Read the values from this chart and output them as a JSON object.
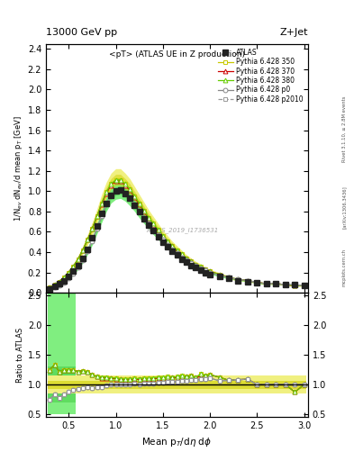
{
  "title_top": "13000 GeV pp",
  "title_right": "Z+Jet",
  "plot_title": "<pT> (ATLAS UE in Z production)",
  "xlabel": "Mean $p_T$/d$\\eta$ d$\\phi$",
  "ylabel_main": "1/N$_{ev}$ dN$_{ev}$/d mean p$_T$ [GeV]",
  "ylabel_ratio": "Ratio to ATLAS",
  "watermark": "ATLAS_2019_I1736531",
  "rivet_text": "Rivet 3.1.10, ≥ 2.8M events",
  "arxiv_text": "[arXiv:1306.3436]",
  "mcplots_text": "mcplots.cern.ch",
  "atlas_x": [
    0.3,
    0.35,
    0.4,
    0.45,
    0.5,
    0.55,
    0.6,
    0.65,
    0.7,
    0.75,
    0.8,
    0.85,
    0.9,
    0.95,
    1.0,
    1.05,
    1.1,
    1.15,
    1.2,
    1.25,
    1.3,
    1.35,
    1.4,
    1.45,
    1.5,
    1.55,
    1.6,
    1.65,
    1.7,
    1.75,
    1.8,
    1.85,
    1.9,
    1.95,
    2.0,
    2.1,
    2.2,
    2.3,
    2.4,
    2.5,
    2.6,
    2.7,
    2.8,
    2.9,
    3.0
  ],
  "atlas_y": [
    0.04,
    0.06,
    0.09,
    0.12,
    0.16,
    0.21,
    0.27,
    0.34,
    0.43,
    0.54,
    0.66,
    0.78,
    0.88,
    0.96,
    1.0,
    1.01,
    0.98,
    0.93,
    0.86,
    0.8,
    0.73,
    0.67,
    0.61,
    0.55,
    0.5,
    0.45,
    0.41,
    0.37,
    0.33,
    0.3,
    0.27,
    0.25,
    0.22,
    0.2,
    0.18,
    0.16,
    0.14,
    0.12,
    0.11,
    0.1,
    0.09,
    0.09,
    0.08,
    0.08,
    0.07
  ],
  "py350_x": [
    0.3,
    0.35,
    0.4,
    0.45,
    0.5,
    0.55,
    0.6,
    0.65,
    0.7,
    0.75,
    0.8,
    0.85,
    0.9,
    0.95,
    1.0,
    1.05,
    1.1,
    1.15,
    1.2,
    1.25,
    1.3,
    1.35,
    1.4,
    1.45,
    1.5,
    1.55,
    1.6,
    1.65,
    1.7,
    1.75,
    1.8,
    1.85,
    1.9,
    1.95,
    2.0,
    2.1,
    2.2,
    2.3,
    2.4,
    2.5,
    2.6,
    2.7,
    2.8,
    2.9,
    3.0
  ],
  "py350_y": [
    0.05,
    0.08,
    0.11,
    0.15,
    0.2,
    0.26,
    0.33,
    0.42,
    0.52,
    0.63,
    0.75,
    0.88,
    0.99,
    1.07,
    1.11,
    1.11,
    1.07,
    1.02,
    0.95,
    0.88,
    0.81,
    0.74,
    0.68,
    0.62,
    0.56,
    0.51,
    0.46,
    0.42,
    0.38,
    0.34,
    0.31,
    0.28,
    0.26,
    0.23,
    0.21,
    0.18,
    0.15,
    0.13,
    0.12,
    0.1,
    0.09,
    0.09,
    0.08,
    0.07,
    0.07
  ],
  "py350_color": "#c8c800",
  "py370_x": [
    0.3,
    0.35,
    0.4,
    0.45,
    0.5,
    0.55,
    0.6,
    0.65,
    0.7,
    0.75,
    0.8,
    0.85,
    0.9,
    0.95,
    1.0,
    1.05,
    1.1,
    1.15,
    1.2,
    1.25,
    1.3,
    1.35,
    1.4,
    1.45,
    1.5,
    1.55,
    1.6,
    1.65,
    1.7,
    1.75,
    1.8,
    1.85,
    1.9,
    1.95,
    2.0,
    2.1,
    2.2,
    2.3,
    2.4,
    2.5,
    2.6,
    2.7,
    2.8,
    2.9,
    3.0
  ],
  "py370_y": [
    0.05,
    0.08,
    0.11,
    0.15,
    0.2,
    0.26,
    0.33,
    0.42,
    0.52,
    0.63,
    0.75,
    0.87,
    0.98,
    1.06,
    1.1,
    1.1,
    1.06,
    1.01,
    0.94,
    0.87,
    0.8,
    0.73,
    0.67,
    0.61,
    0.55,
    0.5,
    0.46,
    0.41,
    0.37,
    0.34,
    0.31,
    0.28,
    0.25,
    0.23,
    0.21,
    0.18,
    0.15,
    0.13,
    0.12,
    0.1,
    0.09,
    0.09,
    0.08,
    0.07,
    0.07
  ],
  "py370_color": "#cc0000",
  "py380_x": [
    0.3,
    0.35,
    0.4,
    0.45,
    0.5,
    0.55,
    0.6,
    0.65,
    0.7,
    0.75,
    0.8,
    0.85,
    0.9,
    0.95,
    1.0,
    1.05,
    1.1,
    1.15,
    1.2,
    1.25,
    1.3,
    1.35,
    1.4,
    1.45,
    1.5,
    1.55,
    1.6,
    1.65,
    1.7,
    1.75,
    1.8,
    1.85,
    1.9,
    1.95,
    2.0,
    2.1,
    2.2,
    2.3,
    2.4,
    2.5,
    2.6,
    2.7,
    2.8,
    2.9,
    3.0
  ],
  "py380_y": [
    0.05,
    0.08,
    0.11,
    0.15,
    0.2,
    0.26,
    0.33,
    0.42,
    0.52,
    0.63,
    0.75,
    0.88,
    0.99,
    1.07,
    1.11,
    1.11,
    1.07,
    1.02,
    0.95,
    0.88,
    0.81,
    0.74,
    0.68,
    0.62,
    0.56,
    0.51,
    0.46,
    0.42,
    0.38,
    0.34,
    0.31,
    0.28,
    0.26,
    0.23,
    0.21,
    0.18,
    0.15,
    0.13,
    0.12,
    0.1,
    0.09,
    0.09,
    0.08,
    0.07,
    0.07
  ],
  "py380_color": "#66cc00",
  "pyp0_x": [
    0.3,
    0.35,
    0.4,
    0.45,
    0.5,
    0.55,
    0.6,
    0.65,
    0.7,
    0.75,
    0.8,
    0.85,
    0.9,
    0.95,
    1.0,
    1.05,
    1.1,
    1.15,
    1.2,
    1.25,
    1.3,
    1.35,
    1.4,
    1.45,
    1.5,
    1.55,
    1.6,
    1.65,
    1.7,
    1.75,
    1.8,
    1.85,
    1.9,
    1.95,
    2.0,
    2.1,
    2.2,
    2.3,
    2.4,
    2.5,
    2.6,
    2.7,
    2.8,
    2.9,
    3.0
  ],
  "pyp0_y": [
    0.03,
    0.05,
    0.07,
    0.1,
    0.14,
    0.19,
    0.25,
    0.32,
    0.41,
    0.51,
    0.63,
    0.75,
    0.87,
    0.96,
    1.0,
    1.01,
    0.98,
    0.93,
    0.87,
    0.8,
    0.74,
    0.68,
    0.62,
    0.57,
    0.52,
    0.47,
    0.43,
    0.39,
    0.35,
    0.32,
    0.29,
    0.27,
    0.24,
    0.22,
    0.2,
    0.17,
    0.15,
    0.13,
    0.12,
    0.1,
    0.09,
    0.09,
    0.08,
    0.08,
    0.07
  ],
  "pyp0_color": "#888888",
  "pyp2010_x": [
    0.3,
    0.35,
    0.4,
    0.45,
    0.5,
    0.55,
    0.6,
    0.65,
    0.7,
    0.75,
    0.8,
    0.85,
    0.9,
    0.95,
    1.0,
    1.05,
    1.1,
    1.15,
    1.2,
    1.25,
    1.3,
    1.35,
    1.4,
    1.45,
    1.5,
    1.55,
    1.6,
    1.65,
    1.7,
    1.75,
    1.8,
    1.85,
    1.9,
    1.95,
    2.0,
    2.1,
    2.2,
    2.3,
    2.4,
    2.5,
    2.6,
    2.7,
    2.8,
    2.9,
    3.0
  ],
  "pyp2010_y": [
    0.03,
    0.05,
    0.07,
    0.1,
    0.14,
    0.19,
    0.25,
    0.32,
    0.41,
    0.51,
    0.63,
    0.75,
    0.87,
    0.96,
    1.0,
    1.01,
    0.98,
    0.93,
    0.87,
    0.8,
    0.74,
    0.68,
    0.62,
    0.57,
    0.52,
    0.47,
    0.43,
    0.39,
    0.35,
    0.32,
    0.29,
    0.27,
    0.24,
    0.22,
    0.2,
    0.17,
    0.15,
    0.13,
    0.12,
    0.1,
    0.09,
    0.09,
    0.08,
    0.08,
    0.07
  ],
  "pyp2010_color": "#999999",
  "xlim": [
    0.26,
    3.04
  ],
  "ylim_main": [
    0.0,
    2.45
  ],
  "ylim_ratio": [
    0.45,
    2.55
  ],
  "yticks_main": [
    0.0,
    0.2,
    0.4,
    0.6,
    0.8,
    1.0,
    1.2,
    1.4,
    1.6,
    1.8,
    2.0,
    2.2,
    2.4
  ],
  "yticks_ratio": [
    0.5,
    1.0,
    1.5,
    2.0,
    2.5
  ],
  "xticks": [
    0.5,
    1.0,
    1.5,
    2.0,
    2.5,
    3.0
  ],
  "band_yellow_light": "#f0f080",
  "band_yellow_dark": "#d0d000",
  "band_green_light": "#80ee80",
  "band_green_dark": "#40cc40"
}
